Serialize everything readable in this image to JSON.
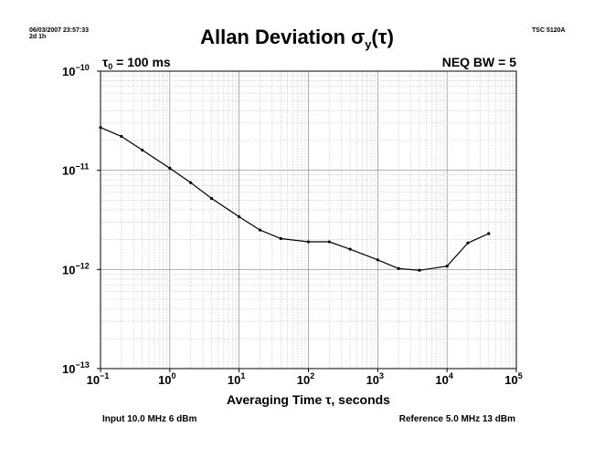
{
  "header": {
    "timestamp": "06/03/2007 23:57:33",
    "duration": "2d 1h",
    "instrument": "TSC 5120A"
  },
  "annotations": {
    "tau0_symbol": "τ",
    "tau0_sub": "0",
    "tau0_value": " = 100 ms",
    "neq_bw": "NEQ BW = 5"
  },
  "footer": {
    "input": "Input 10.0 MHz 6 dBm",
    "reference": "Reference 5.0 MHz 13 dBm"
  },
  "chart_data": {
    "type": "line",
    "title_main": "Allan Deviation ",
    "title_sigma": "σ",
    "title_sub": "y",
    "title_arg": "(τ)",
    "xlabel": "Averaging Time τ, seconds",
    "ylabel": "",
    "xscale": "log",
    "yscale": "log",
    "xlim": [
      0.1,
      100000
    ],
    "ylim": [
      1e-13,
      1e-10
    ],
    "grid": true,
    "x_ticks": [
      {
        "base": "10",
        "exp": "−1"
      },
      {
        "base": "10",
        "exp": "0"
      },
      {
        "base": "10",
        "exp": "1"
      },
      {
        "base": "10",
        "exp": "2"
      },
      {
        "base": "10",
        "exp": "3"
      },
      {
        "base": "10",
        "exp": "4"
      },
      {
        "base": "10",
        "exp": "5"
      }
    ],
    "y_ticks": [
      {
        "base": "10",
        "exp": "−10"
      },
      {
        "base": "10",
        "exp": "−11"
      },
      {
        "base": "10",
        "exp": "−12"
      },
      {
        "base": "10",
        "exp": "−13"
      }
    ],
    "series": [
      {
        "x": [
          0.1,
          0.2,
          0.4,
          1,
          2,
          4,
          10,
          20,
          40,
          100,
          200,
          400,
          1000,
          2000,
          4000,
          10000,
          20000,
          40000
        ],
        "y": [
          2.7e-11,
          2.2e-11,
          1.6e-11,
          1.05e-11,
          7.5e-12,
          5.2e-12,
          3.4e-12,
          2.5e-12,
          2.05e-12,
          1.9e-12,
          1.9e-12,
          1.6e-12,
          1.25e-12,
          1.02e-12,
          9.8e-13,
          1.08e-12,
          1.85e-12,
          2.3e-12
        ]
      }
    ]
  }
}
